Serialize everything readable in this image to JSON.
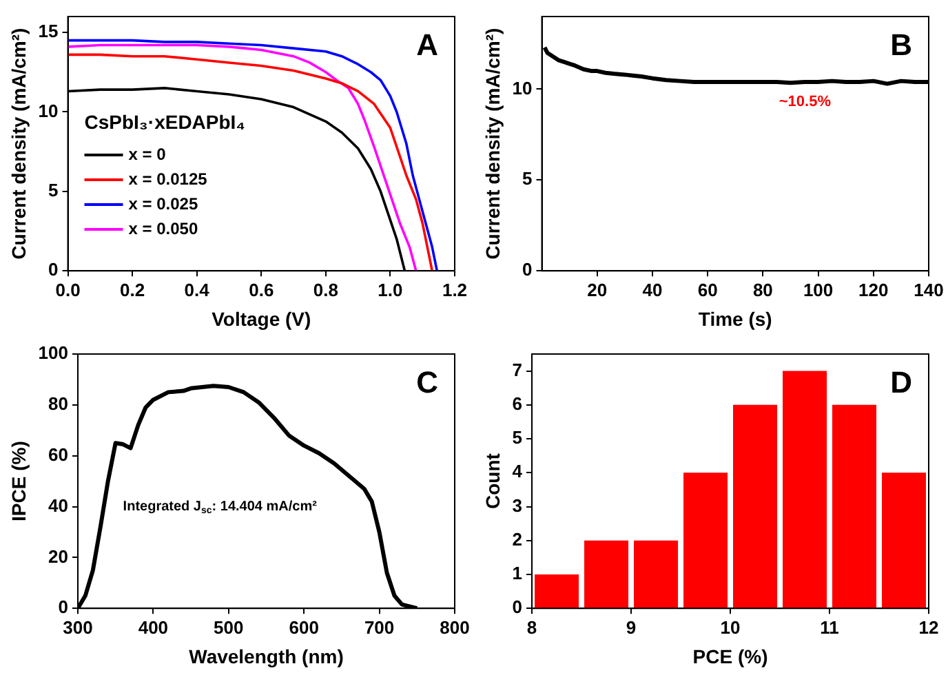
{
  "chart_data": [
    {
      "type": "line",
      "title": "A",
      "xlabel": "Voltage (V)",
      "ylabel": "Current density (mA/cm²)",
      "legend_title": "CsPbI₃·xEDAPbI₄",
      "legend": "left",
      "marker": "none",
      "grid": false,
      "xlim": [
        0,
        1.2
      ],
      "xticks": [
        {
          "value": 0,
          "label": "0.0"
        },
        0.2,
        0.4,
        0.6,
        0.8,
        {
          "value": 1,
          "label": "1.0"
        },
        1.2
      ],
      "ylim": [
        0,
        16
      ],
      "yticks": [
        0,
        5,
        10,
        15
      ],
      "series": [
        {
          "name": "x = 0",
          "color": "#000000",
          "x": [
            0,
            0.1,
            0.2,
            0.3,
            0.4,
            0.5,
            0.6,
            0.7,
            0.8,
            0.85,
            0.9,
            0.94,
            0.97,
            1.0,
            1.02,
            1.045
          ],
          "values": [
            11.3,
            11.4,
            11.4,
            11.5,
            11.3,
            11.1,
            10.8,
            10.3,
            9.4,
            8.7,
            7.7,
            6.4,
            5.0,
            3.2,
            2.0,
            0
          ]
        },
        {
          "name": "x = 0.0125",
          "color": "#ff0000",
          "x": [
            0,
            0.1,
            0.2,
            0.3,
            0.4,
            0.5,
            0.6,
            0.7,
            0.8,
            0.85,
            0.9,
            0.95,
            1.0,
            1.05,
            1.08,
            1.1,
            1.13
          ],
          "values": [
            13.6,
            13.6,
            13.5,
            13.5,
            13.3,
            13.1,
            12.9,
            12.6,
            12.1,
            11.8,
            11.3,
            10.5,
            9.0,
            6.0,
            4.5,
            3.0,
            0
          ]
        },
        {
          "name": "x = 0.025",
          "color": "#0000ff",
          "x": [
            0,
            0.1,
            0.2,
            0.3,
            0.4,
            0.5,
            0.6,
            0.7,
            0.8,
            0.85,
            0.9,
            0.94,
            0.97,
            1.0,
            1.02,
            1.05,
            1.07,
            1.09,
            1.11,
            1.13,
            1.145
          ],
          "values": [
            14.5,
            14.5,
            14.5,
            14.4,
            14.4,
            14.3,
            14.2,
            14.0,
            13.8,
            13.5,
            13.0,
            12.5,
            12.0,
            11.0,
            10.0,
            8.0,
            6.0,
            4.5,
            3.0,
            1.5,
            0
          ]
        },
        {
          "name": "x = 0.050",
          "color": "#ff00ff",
          "x": [
            0,
            0.1,
            0.2,
            0.3,
            0.4,
            0.5,
            0.55,
            0.6,
            0.7,
            0.75,
            0.8,
            0.84,
            0.87,
            0.9,
            0.92,
            0.95,
            0.98,
            1.0,
            1.03,
            1.06,
            1.08
          ],
          "values": [
            14.1,
            14.2,
            14.2,
            14.2,
            14.2,
            14.1,
            14.0,
            13.9,
            13.5,
            13.1,
            12.5,
            11.9,
            11.5,
            10.5,
            9.5,
            7.8,
            6.0,
            4.8,
            3.0,
            1.5,
            0
          ]
        }
      ]
    },
    {
      "type": "line",
      "title": "B",
      "xlabel": "Time (s)",
      "ylabel": "Current density (mA/cm²)",
      "marker": "none",
      "grid": false,
      "xlim": [
        0,
        140
      ],
      "xticks": [
        20,
        40,
        60,
        80,
        100,
        120,
        140
      ],
      "ylim": [
        0,
        14
      ],
      "yticks": [
        0,
        5,
        10
      ],
      "annotations": [
        "~10.5%"
      ],
      "series": [
        {
          "color": "#000000",
          "x": [
            1,
            2,
            4,
            6,
            8,
            10,
            12,
            15,
            18,
            20,
            23,
            26,
            30,
            33,
            36,
            40,
            45,
            50,
            55,
            60,
            65,
            70,
            75,
            80,
            85,
            90,
            95,
            100,
            105,
            110,
            115,
            120,
            125,
            130,
            135,
            140
          ],
          "values": [
            12.3,
            12.0,
            11.8,
            11.6,
            11.5,
            11.4,
            11.3,
            11.1,
            11.0,
            11.0,
            10.9,
            10.85,
            10.8,
            10.75,
            10.7,
            10.6,
            10.5,
            10.45,
            10.4,
            10.4,
            10.4,
            10.4,
            10.4,
            10.4,
            10.4,
            10.35,
            10.4,
            10.4,
            10.45,
            10.4,
            10.4,
            10.45,
            10.3,
            10.45,
            10.4,
            10.4
          ]
        }
      ]
    },
    {
      "type": "line",
      "title": "C",
      "xlabel": "Wavelength (nm)",
      "ylabel": "IPCE (%)",
      "marker": "none",
      "grid": false,
      "xlim": [
        300,
        800
      ],
      "xticks": [
        300,
        400,
        500,
        600,
        700,
        800
      ],
      "ylim": [
        0,
        100
      ],
      "yticks": [
        0,
        20,
        40,
        60,
        80,
        100
      ],
      "annotations": [
        "Integrated J$_{sc}$: 14.404 mA/cm²"
      ],
      "series": [
        {
          "color": "#000000",
          "x": [
            300,
            310,
            320,
            330,
            340,
            350,
            360,
            370,
            380,
            390,
            400,
            420,
            440,
            450,
            480,
            500,
            520,
            540,
            560,
            580,
            600,
            620,
            640,
            660,
            680,
            690,
            700,
            710,
            720,
            730,
            750
          ],
          "values": [
            0,
            5,
            15,
            32,
            50,
            65,
            64.5,
            63,
            72,
            79,
            82,
            85,
            85.5,
            86.5,
            87.5,
            87,
            85,
            81,
            75,
            68,
            64,
            61,
            57,
            52,
            47,
            42,
            30,
            14,
            5,
            1.5,
            0
          ]
        }
      ]
    },
    {
      "type": "histogram",
      "title": "D",
      "xlabel": "PCE (%)",
      "ylabel": "Count",
      "grid": false,
      "color": "#ff0000",
      "xlim": [
        8,
        12
      ],
      "xticks": [
        8,
        9,
        10,
        11,
        12
      ],
      "ylim": [
        0,
        7.5
      ],
      "yticks": [
        0,
        1,
        2,
        3,
        4,
        5,
        6,
        7
      ],
      "bins": [
        8,
        8.5,
        9,
        9.5,
        10,
        10.5,
        11,
        11.5,
        12
      ],
      "values": [
        1,
        2,
        2,
        4,
        6,
        7,
        6,
        4
      ]
    }
  ]
}
